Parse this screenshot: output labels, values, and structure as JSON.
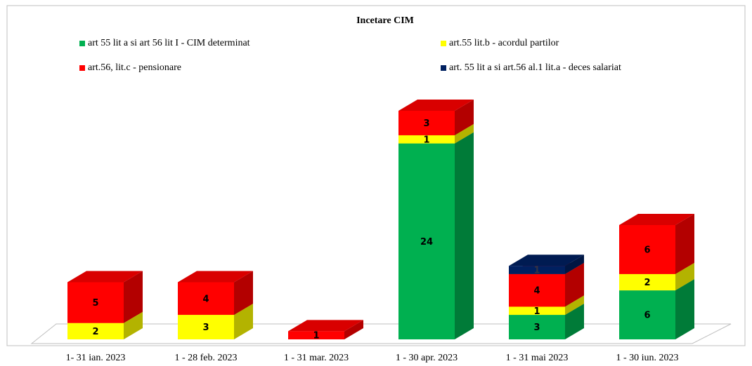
{
  "chart_data": {
    "type": "bar3d_stacked",
    "title": "Incetare CIM",
    "categories": [
      "1- 31 ian. 2023",
      "1 - 28 feb. 2023",
      "1 - 31 mar. 2023",
      "1 - 30 apr. 2023",
      "1 - 31 mai 2023",
      "1 - 30 iun. 2023"
    ],
    "series": [
      {
        "name": "art 55 lit a si art 56 lit I - CIM determinat",
        "color": "#00b050",
        "values": [
          null,
          null,
          null,
          24,
          3,
          6
        ]
      },
      {
        "name": "art.55 lit.b - acordul partilor",
        "color": "#ffff00",
        "values": [
          2,
          3,
          null,
          1,
          1,
          2
        ]
      },
      {
        "name": "art.56, lit.c - pensionare",
        "color": "#ff0000",
        "values": [
          5,
          4,
          1,
          3,
          4,
          6
        ]
      },
      {
        "name": "art. 55 lit a si art.56 al.1 lit.a - deces salariat",
        "color": "#002060",
        "values": [
          null,
          null,
          null,
          null,
          1,
          null
        ]
      }
    ]
  }
}
